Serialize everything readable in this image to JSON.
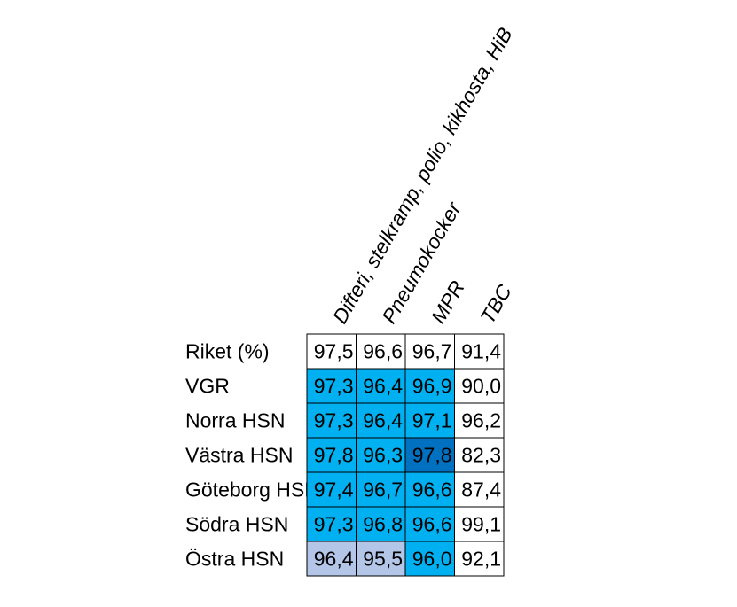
{
  "chart_data": {
    "type": "heatmap",
    "columns": [
      "Difteri, stelkramp, polio, kikhosta, HiB",
      "Pneumokocker",
      "MPR",
      "TBC"
    ],
    "rows": [
      "Riket (%)",
      "VGR",
      "Norra HSN",
      "Västra HSN",
      "Göteborg HSN",
      "Södra HSN",
      "Östra HSN"
    ],
    "values": [
      [
        "97,5",
        "96,6",
        "96,7",
        "91,4"
      ],
      [
        "97,3",
        "96,4",
        "96,9",
        "90,0"
      ],
      [
        "97,3",
        "96,4",
        "97,1",
        "96,2"
      ],
      [
        "97,8",
        "96,3",
        "97,8",
        "82,3"
      ],
      [
        "97,4",
        "96,7",
        "96,6",
        "87,4"
      ],
      [
        "97,3",
        "96,8",
        "96,6",
        "99,1"
      ],
      [
        "96,4",
        "95,5",
        "96,0",
        "92,1"
      ]
    ],
    "fills": [
      [
        "white",
        "white",
        "white",
        "white"
      ],
      [
        "blue",
        "blue",
        "blue",
        "white"
      ],
      [
        "blue",
        "blue",
        "blue",
        "white"
      ],
      [
        "blue",
        "blue",
        "darkblue",
        "white"
      ],
      [
        "blue",
        "blue",
        "blue",
        "white"
      ],
      [
        "blue",
        "blue",
        "blue",
        "white"
      ],
      [
        "lightblue",
        "lightblue",
        "blue",
        "white"
      ]
    ],
    "colors": {
      "white": "#ffffff",
      "blue": "#00b0f0",
      "darkblue": "#0070c0",
      "lightblue": "#b4c6e7"
    }
  }
}
